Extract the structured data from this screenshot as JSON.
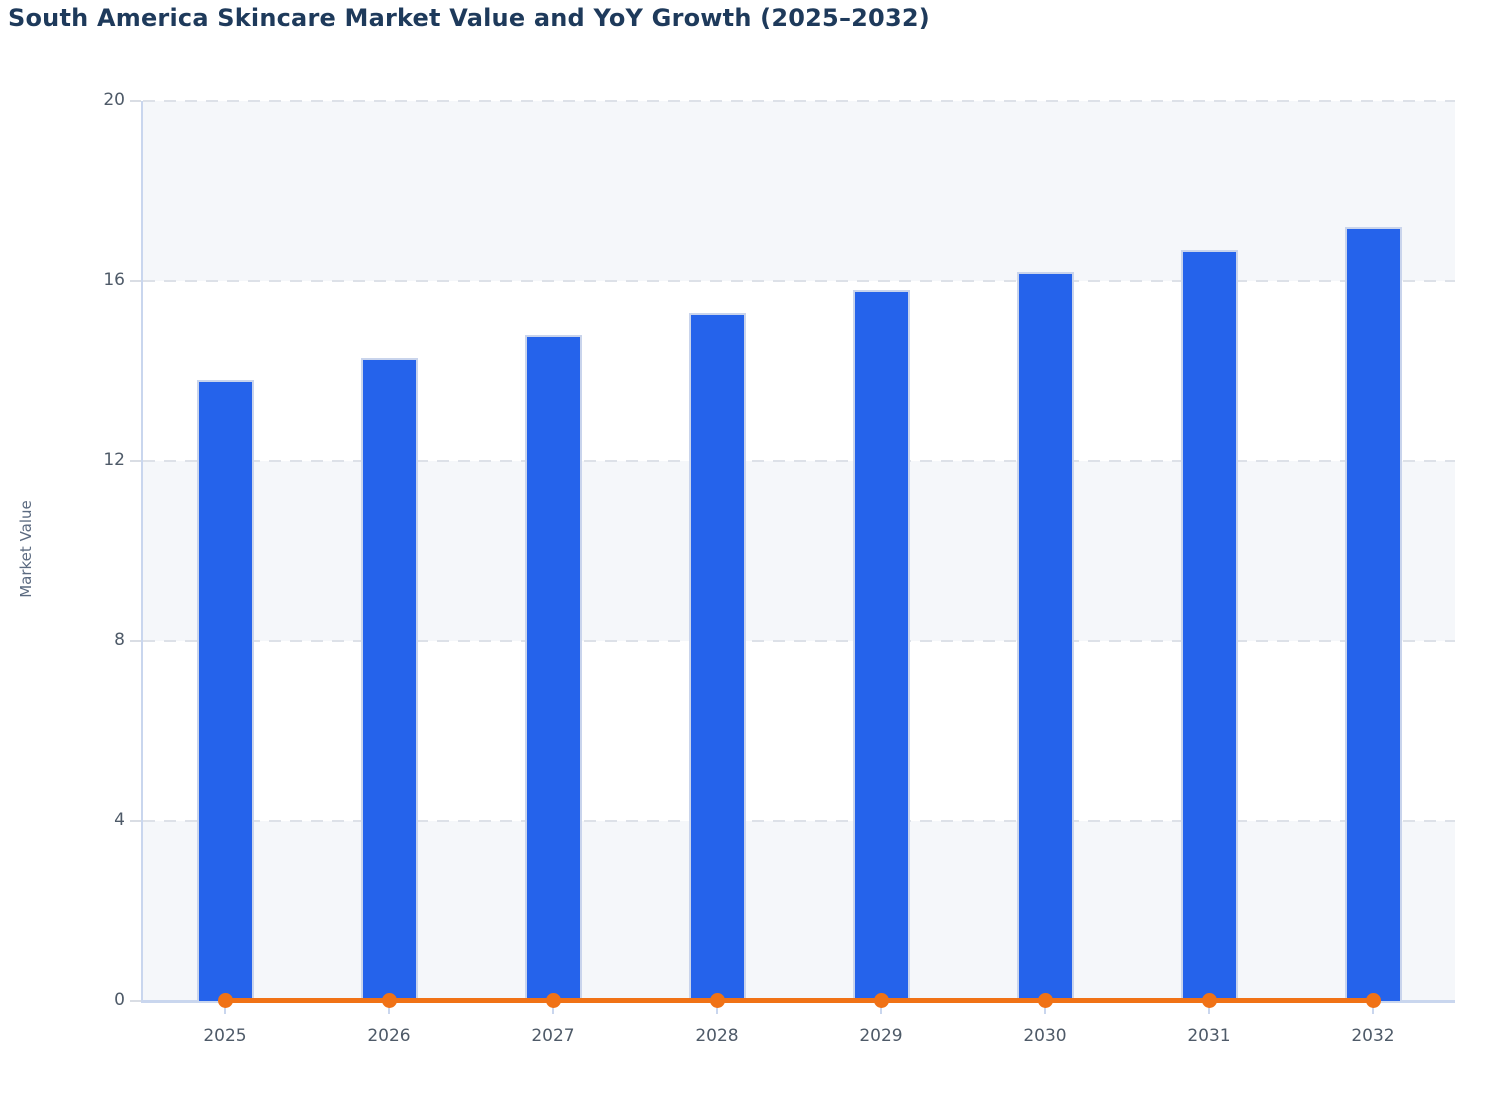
{
  "chart_data": {
    "type": "bar",
    "title": "South America Skincare Market Value and YoY Growth (2025–2032)",
    "xlabel": "",
    "ylabel": "Market Value",
    "categories": [
      "2025",
      "2026",
      "2027",
      "2028",
      "2029",
      "2030",
      "2031",
      "2032"
    ],
    "series": [
      {
        "name": "Market Value",
        "type": "bar",
        "values": [
          13.8,
          14.3,
          14.8,
          15.3,
          15.8,
          16.2,
          16.7,
          17.2
        ]
      },
      {
        "name": "YoY Growth",
        "type": "line",
        "values": [
          0,
          0,
          0,
          0,
          0,
          0,
          0,
          0
        ]
      }
    ],
    "ylim": [
      0,
      20
    ],
    "yticks": [
      0,
      4,
      8,
      12,
      16,
      20
    ],
    "grid": "horizontal dashed gridlines at each y tick",
    "plot_bands": "alternating light bands between ticks, shaded from top: 16-20, 8-12, 0-4",
    "legend": "none"
  },
  "colors": {
    "bar": "#2563eb",
    "bar_border": "#c9d4ec",
    "line": "#f07216",
    "title_text": "#1e3a5b",
    "axis_text": "#4e5a68",
    "y_title_text": "#5b6a80",
    "axis_line": "#c9d6ee",
    "gridline": "#dde1e8",
    "band": "#f5f7fa",
    "background": "#ffffff"
  }
}
